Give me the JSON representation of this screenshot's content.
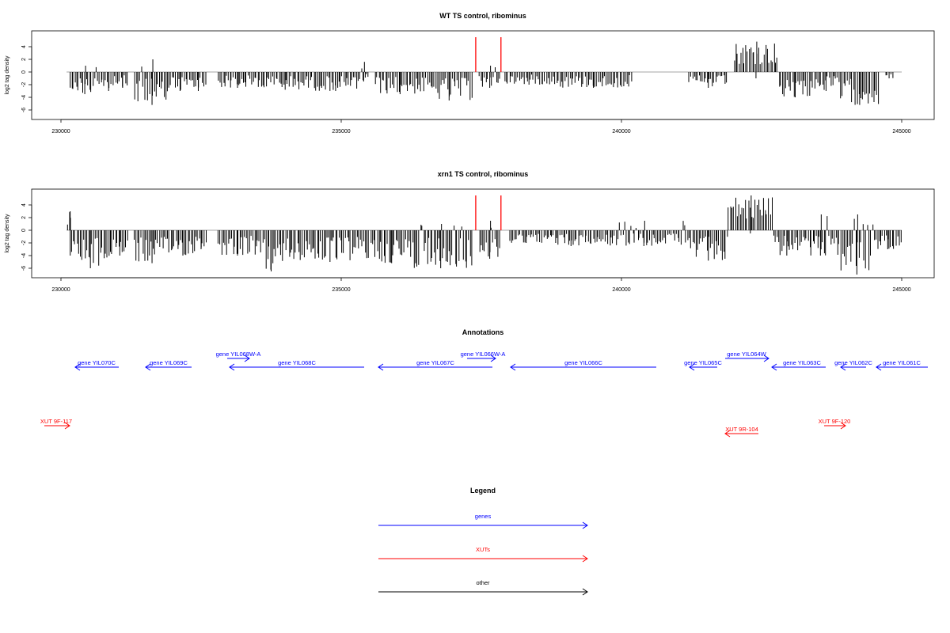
{
  "chart_data": [
    {
      "type": "bar",
      "title": "WT TS control, ribominus",
      "ylabel": "log2 tag density",
      "xlim": [
        230000,
        245000
      ],
      "ylim": [
        -7,
        6
      ],
      "x_ticks": [
        "230000",
        "235000",
        "240000",
        "245000"
      ],
      "x_tick_values": [
        230000,
        235000,
        240000,
        245000
      ],
      "y_ticks": [
        "-6",
        "-4",
        "-2",
        "0",
        "2",
        "4"
      ],
      "y_tick_values": [
        -6,
        -4,
        -2,
        0,
        2,
        4
      ],
      "baseline": {
        "start": 230100,
        "end": 245000,
        "value": 0,
        "color": "#888888"
      },
      "red_markers": [
        237400,
        237850
      ],
      "red_marker_top": 5.5,
      "bar_color": "#000000",
      "marker_color": "#ff0000",
      "segments": [
        {
          "start": 230150,
          "end": 230700,
          "min": -3.5,
          "max": 1
        },
        {
          "start": 230700,
          "end": 231000,
          "min": -3,
          "max": 0
        },
        {
          "start": 231000,
          "end": 231200,
          "min": -2.5,
          "max": 0
        },
        {
          "start": 231300,
          "end": 231950,
          "min": -5.2,
          "max": 2
        },
        {
          "start": 231950,
          "end": 232300,
          "min": -3,
          "max": 0
        },
        {
          "start": 232300,
          "end": 232600,
          "min": -3,
          "max": 0
        },
        {
          "start": 232800,
          "end": 233500,
          "min": -2.5,
          "max": 0
        },
        {
          "start": 233500,
          "end": 234500,
          "min": -2.8,
          "max": 0
        },
        {
          "start": 234500,
          "end": 235300,
          "min": -3,
          "max": 0
        },
        {
          "start": 235300,
          "end": 235500,
          "min": -1.5,
          "max": 1.6
        },
        {
          "start": 235600,
          "end": 236500,
          "min": -3.5,
          "max": 0
        },
        {
          "start": 236500,
          "end": 237350,
          "min": -4.5,
          "max": 0
        },
        {
          "start": 237450,
          "end": 237850,
          "min": -2.5,
          "max": 1
        },
        {
          "start": 237900,
          "end": 238800,
          "min": -2,
          "max": 0
        },
        {
          "start": 238800,
          "end": 240200,
          "min": -2.5,
          "max": 0
        },
        {
          "start": 241200,
          "end": 241900,
          "min": -2.5,
          "max": 0
        },
        {
          "start": 242000,
          "end": 242800,
          "min": -1,
          "max": 4.8
        },
        {
          "start": 242800,
          "end": 243400,
          "min": -4,
          "max": 0
        },
        {
          "start": 243400,
          "end": 243900,
          "min": -3,
          "max": 0
        },
        {
          "start": 243900,
          "end": 244600,
          "min": -5.2,
          "max": 0
        },
        {
          "start": 244700,
          "end": 244850,
          "min": -1,
          "max": 0
        }
      ]
    },
    {
      "type": "bar",
      "title": "xrn1 TS control, ribominus",
      "ylabel": "log2 tag density",
      "xlim": [
        230000,
        245000
      ],
      "ylim": [
        -7,
        6
      ],
      "x_ticks": [
        "230000",
        "235000",
        "240000",
        "245000"
      ],
      "x_tick_values": [
        230000,
        235000,
        240000,
        245000
      ],
      "y_ticks": [
        "-6",
        "-4",
        "-2",
        "0",
        "2",
        "4"
      ],
      "y_tick_values": [
        -6,
        -4,
        -2,
        0,
        2,
        4
      ],
      "baseline": {
        "start": 230100,
        "end": 245000,
        "value": 0,
        "color": "#888888"
      },
      "red_markers": [
        237400,
        237850
      ],
      "red_marker_top": 5.5,
      "bar_color": "#000000",
      "marker_color": "#ff0000",
      "segments": [
        {
          "start": 230100,
          "end": 230200,
          "min": 0,
          "max": 3
        },
        {
          "start": 230150,
          "end": 230900,
          "min": -6,
          "max": 0
        },
        {
          "start": 230900,
          "end": 231200,
          "min": -4,
          "max": 0
        },
        {
          "start": 231300,
          "end": 231950,
          "min": -5.2,
          "max": 0
        },
        {
          "start": 231950,
          "end": 232400,
          "min": -4,
          "max": 0
        },
        {
          "start": 232400,
          "end": 232600,
          "min": -3,
          "max": 0
        },
        {
          "start": 232800,
          "end": 233500,
          "min": -4,
          "max": 0
        },
        {
          "start": 233500,
          "end": 234000,
          "min": -6.5,
          "max": 0
        },
        {
          "start": 234000,
          "end": 235600,
          "min": -5,
          "max": 0
        },
        {
          "start": 235600,
          "end": 236200,
          "min": -5.2,
          "max": 0
        },
        {
          "start": 236200,
          "end": 237350,
          "min": -6,
          "max": 1
        },
        {
          "start": 237450,
          "end": 237850,
          "min": -4.5,
          "max": 1.5
        },
        {
          "start": 238000,
          "end": 238600,
          "min": -2,
          "max": 0
        },
        {
          "start": 238600,
          "end": 239600,
          "min": -2.5,
          "max": 0
        },
        {
          "start": 239600,
          "end": 241200,
          "min": -2.5,
          "max": 1.5
        },
        {
          "start": 241200,
          "end": 241900,
          "min": -4.8,
          "max": 0
        },
        {
          "start": 241900,
          "end": 242700,
          "min": -0.5,
          "max": 5.5
        },
        {
          "start": 242700,
          "end": 243200,
          "min": -4,
          "max": 0
        },
        {
          "start": 243200,
          "end": 243900,
          "min": -4,
          "max": 2.5
        },
        {
          "start": 243900,
          "end": 244500,
          "min": -7,
          "max": 2.5
        },
        {
          "start": 244500,
          "end": 245000,
          "min": -3,
          "max": 0
        }
      ]
    }
  ],
  "annotations": {
    "title": "Annotations",
    "genes_color": "#0000ff",
    "xuts_color": "#ff0000",
    "genes": [
      {
        "label": "gene YIL070C",
        "strand": "-"
      },
      {
        "label": "gene YIL069C",
        "strand": "-"
      },
      {
        "label": "gene YIL068W-A",
        "strand": "+"
      },
      {
        "label": "gene YIL068C",
        "strand": "-"
      },
      {
        "label": "gene YIL067C",
        "strand": "-"
      },
      {
        "label": "gene YIL066W-A",
        "strand": "+"
      },
      {
        "label": "gene YIL066C",
        "strand": "-"
      },
      {
        "label": "gene YIL065C",
        "strand": "-"
      },
      {
        "label": "gene YIL064W",
        "strand": "+"
      },
      {
        "label": "gene YIL063C",
        "strand": "-"
      },
      {
        "label": "gene YIL062C",
        "strand": "-"
      },
      {
        "label": "gene YIL061C",
        "strand": "-"
      }
    ],
    "xuts": [
      {
        "label": "XUT 9F-117",
        "strand": "+"
      },
      {
        "label": "XUT 9R-104",
        "strand": "-"
      },
      {
        "label": "XUT 9F-120",
        "strand": "+"
      }
    ]
  },
  "legend": {
    "title": "Legend",
    "items": [
      {
        "label": "genes",
        "color": "#0000ff"
      },
      {
        "label": "XUTs",
        "color": "#ff0000"
      },
      {
        "label": "other",
        "color": "#000000"
      }
    ]
  }
}
